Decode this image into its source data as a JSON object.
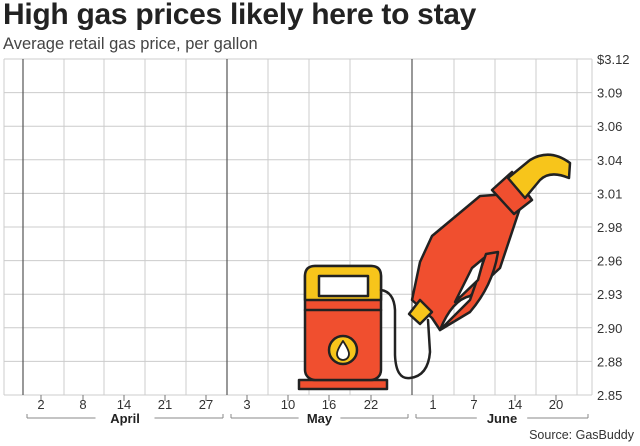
{
  "title": "High gas prices likely here to stay",
  "subtitle": "Average retail gas price, per gallon",
  "source": "Source: GasBuddy",
  "chart_data": {
    "type": "line",
    "title": "High gas prices likely here to stay",
    "subtitle": "Average retail gas price, per gallon",
    "y_ticks": [
      "$3.12",
      "3.09",
      "3.06",
      "3.04",
      "3.01",
      "2.98",
      "2.96",
      "2.93",
      "2.90",
      "2.88",
      "2.85"
    ],
    "ylim": [
      2.85,
      3.12
    ],
    "x_day_ticks": [
      "2",
      "8",
      "14",
      "21",
      "27",
      "3",
      "10",
      "16",
      "22",
      "1",
      "7",
      "14",
      "20"
    ],
    "months": [
      "April",
      "May",
      "June"
    ],
    "series": [],
    "grid": true,
    "colors": {
      "grid": "#cccccc",
      "month_divider": "#555555",
      "pump_red": "#f04f2f",
      "pump_yellow": "#f7c51b",
      "outline": "#222222"
    }
  }
}
